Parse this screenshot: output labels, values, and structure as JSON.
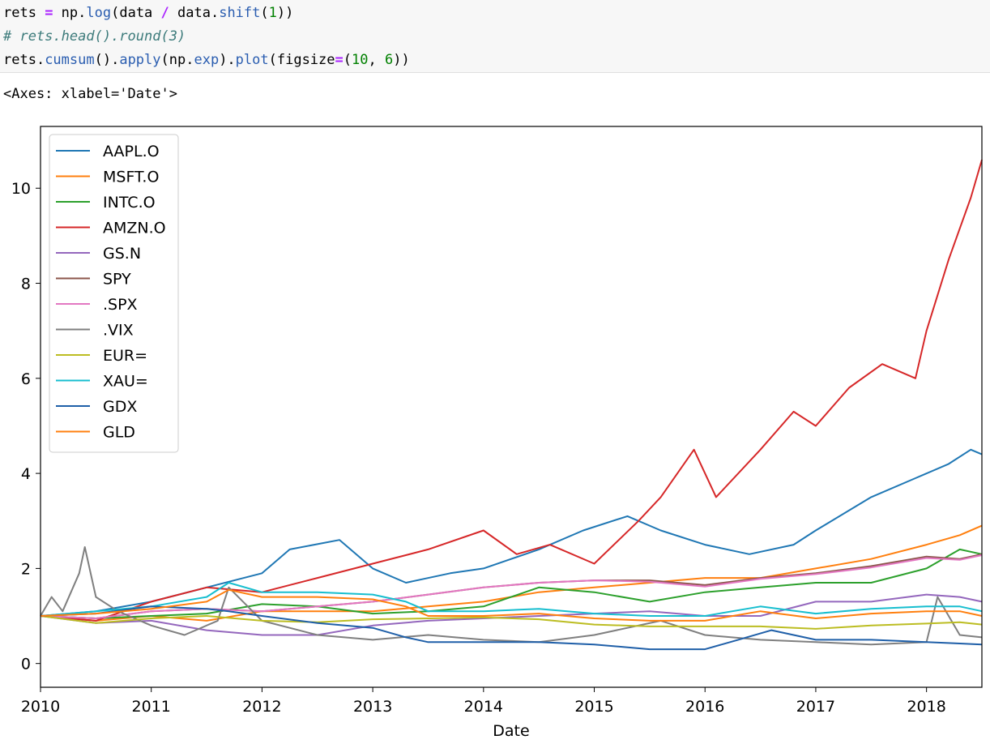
{
  "code": {
    "line1": {
      "a": "rets ",
      "op1": "=",
      "b": " np.",
      "fn1": "log",
      "c": "(data ",
      "op2": "/",
      "d": " data.",
      "fn2": "shift",
      "e": "(",
      "n1": "1",
      "f": "))"
    },
    "line2": {
      "comment": "# rets.head().round(3)"
    },
    "line3": {
      "a": "rets.",
      "fn1": "cumsum",
      "b": "().",
      "fn2": "apply",
      "c": "(np.",
      "fn3": "exp",
      "d": ").",
      "fn4": "plot",
      "e": "(figsize",
      "op1": "=",
      "f": "(",
      "n1": "10",
      "g": ", ",
      "n2": "6",
      "h": "))"
    }
  },
  "output": {
    "repr": "<Axes: xlabel='Date'>"
  },
  "chart_data": {
    "type": "line",
    "xlabel": "Date",
    "ylabel": "",
    "xlim": [
      2010.0,
      2018.5
    ],
    "ylim": [
      -0.5,
      11.3
    ],
    "xticks": [
      2010,
      2011,
      2012,
      2013,
      2014,
      2015,
      2016,
      2017,
      2018
    ],
    "yticks": [
      0,
      2,
      4,
      6,
      8,
      10
    ],
    "grid": false,
    "legend_position": "top-left",
    "series": [
      {
        "name": "AAPL.O",
        "color": "#1f77b4",
        "x": [
          2010.0,
          2010.5,
          2011.0,
          2011.5,
          2012.0,
          2012.25,
          2012.7,
          2013.0,
          2013.3,
          2013.7,
          2014.0,
          2014.5,
          2014.9,
          2015.3,
          2015.6,
          2016.0,
          2016.4,
          2016.8,
          2017.0,
          2017.5,
          2017.9,
          2018.2,
          2018.4,
          2018.5
        ],
        "values": [
          1.0,
          1.1,
          1.3,
          1.6,
          1.9,
          2.4,
          2.6,
          2.0,
          1.7,
          1.9,
          2.0,
          2.4,
          2.8,
          3.1,
          2.8,
          2.5,
          2.3,
          2.5,
          2.8,
          3.5,
          3.9,
          4.2,
          4.5,
          4.4
        ]
      },
      {
        "name": "MSFT.O",
        "color": "#ff7f0e",
        "x": [
          2010.0,
          2010.5,
          2011.0,
          2011.5,
          2012.0,
          2012.5,
          2013.0,
          2013.5,
          2014.0,
          2014.5,
          2015.0,
          2015.5,
          2016.0,
          2016.5,
          2017.0,
          2017.5,
          2018.0,
          2018.3,
          2018.5
        ],
        "values": [
          1.0,
          0.9,
          1.0,
          0.9,
          1.1,
          1.1,
          1.1,
          1.2,
          1.3,
          1.5,
          1.6,
          1.7,
          1.8,
          1.8,
          2.0,
          2.2,
          2.5,
          2.7,
          2.9
        ]
      },
      {
        "name": "INTC.O",
        "color": "#2ca02c",
        "x": [
          2010.0,
          2010.5,
          2011.0,
          2011.5,
          2012.0,
          2012.5,
          2013.0,
          2013.5,
          2014.0,
          2014.5,
          2015.0,
          2015.5,
          2016.0,
          2016.5,
          2017.0,
          2017.5,
          2018.0,
          2018.3,
          2018.5
        ],
        "values": [
          1.0,
          0.95,
          1.0,
          1.05,
          1.25,
          1.2,
          1.05,
          1.1,
          1.2,
          1.6,
          1.5,
          1.3,
          1.5,
          1.6,
          1.7,
          1.7,
          2.0,
          2.4,
          2.3
        ]
      },
      {
        "name": "AMZN.O",
        "color": "#d62728",
        "x": [
          2010.0,
          2010.5,
          2011.0,
          2011.5,
          2012.0,
          2012.5,
          2013.0,
          2013.5,
          2014.0,
          2014.3,
          2014.6,
          2015.0,
          2015.4,
          2015.6,
          2015.9,
          2016.1,
          2016.5,
          2016.8,
          2017.0,
          2017.3,
          2017.6,
          2017.9,
          2018.0,
          2018.2,
          2018.4,
          2018.5
        ],
        "values": [
          1.0,
          0.9,
          1.3,
          1.6,
          1.5,
          1.8,
          2.1,
          2.4,
          2.8,
          2.3,
          2.5,
          2.1,
          3.0,
          3.5,
          4.5,
          3.5,
          4.5,
          5.3,
          5.0,
          5.8,
          6.3,
          6.0,
          7.0,
          8.5,
          9.8,
          10.6
        ]
      },
      {
        "name": "GS.N",
        "color": "#9467bd",
        "x": [
          2010.0,
          2010.5,
          2011.0,
          2011.5,
          2012.0,
          2012.5,
          2013.0,
          2013.5,
          2014.0,
          2014.5,
          2015.0,
          2015.5,
          2016.0,
          2016.5,
          2017.0,
          2017.5,
          2018.0,
          2018.3,
          2018.5
        ],
        "values": [
          1.0,
          0.85,
          0.9,
          0.7,
          0.6,
          0.6,
          0.8,
          0.9,
          0.95,
          1.0,
          1.05,
          1.1,
          1.0,
          1.0,
          1.3,
          1.3,
          1.45,
          1.4,
          1.3
        ]
      },
      {
        "name": "SPY",
        "color": "#8c564b",
        "x": [
          2010.0,
          2010.5,
          2011.0,
          2011.5,
          2012.0,
          2012.5,
          2013.0,
          2013.5,
          2014.0,
          2014.5,
          2015.0,
          2015.5,
          2016.0,
          2016.5,
          2017.0,
          2017.5,
          2018.0,
          2018.3,
          2018.5
        ],
        "values": [
          1.0,
          0.95,
          1.1,
          1.15,
          1.1,
          1.2,
          1.3,
          1.45,
          1.6,
          1.7,
          1.75,
          1.75,
          1.65,
          1.8,
          1.9,
          2.05,
          2.25,
          2.2,
          2.3
        ]
      },
      {
        "name": ".SPX",
        "color": "#e377c2",
        "x": [
          2010.0,
          2010.5,
          2011.0,
          2011.5,
          2012.0,
          2012.5,
          2013.0,
          2013.5,
          2014.0,
          2014.5,
          2015.0,
          2015.5,
          2016.0,
          2016.5,
          2017.0,
          2017.5,
          2018.0,
          2018.3,
          2018.5
        ],
        "values": [
          1.0,
          0.95,
          1.1,
          1.15,
          1.1,
          1.2,
          1.3,
          1.45,
          1.6,
          1.7,
          1.75,
          1.72,
          1.62,
          1.78,
          1.88,
          2.02,
          2.22,
          2.18,
          2.28
        ]
      },
      {
        "name": ".VIX",
        "color": "#7f7f7f",
        "x": [
          2010.0,
          2010.1,
          2010.2,
          2010.35,
          2010.4,
          2010.5,
          2010.7,
          2011.0,
          2011.3,
          2011.6,
          2011.7,
          2012.0,
          2012.5,
          2013.0,
          2013.5,
          2014.0,
          2014.5,
          2015.0,
          2015.6,
          2016.0,
          2016.5,
          2017.0,
          2017.5,
          2018.0,
          2018.1,
          2018.3,
          2018.5
        ],
        "values": [
          1.0,
          1.4,
          1.1,
          1.9,
          2.45,
          1.4,
          1.1,
          0.8,
          0.6,
          0.9,
          1.6,
          0.9,
          0.6,
          0.5,
          0.6,
          0.5,
          0.45,
          0.6,
          0.9,
          0.6,
          0.5,
          0.45,
          0.4,
          0.45,
          1.4,
          0.6,
          0.55
        ]
      },
      {
        "name": "EUR=",
        "color": "#bcbd22",
        "x": [
          2010.0,
          2010.5,
          2011.0,
          2011.5,
          2012.0,
          2012.5,
          2013.0,
          2013.5,
          2014.0,
          2014.5,
          2015.0,
          2015.5,
          2016.0,
          2016.5,
          2017.0,
          2017.5,
          2018.0,
          2018.3,
          2018.5
        ],
        "values": [
          1.0,
          0.85,
          0.95,
          1.0,
          0.9,
          0.87,
          0.93,
          0.95,
          0.97,
          0.93,
          0.82,
          0.78,
          0.78,
          0.78,
          0.73,
          0.8,
          0.84,
          0.87,
          0.82
        ]
      },
      {
        "name": "XAU=",
        "color": "#17becf",
        "x": [
          2010.0,
          2010.5,
          2011.0,
          2011.5,
          2011.7,
          2012.0,
          2012.5,
          2013.0,
          2013.3,
          2013.5,
          2014.0,
          2014.5,
          2015.0,
          2015.5,
          2016.0,
          2016.5,
          2017.0,
          2017.5,
          2018.0,
          2018.3,
          2018.5
        ],
        "values": [
          1.0,
          1.1,
          1.2,
          1.4,
          1.7,
          1.5,
          1.5,
          1.45,
          1.3,
          1.1,
          1.1,
          1.15,
          1.05,
          1.0,
          1.0,
          1.2,
          1.05,
          1.15,
          1.2,
          1.2,
          1.1
        ]
      },
      {
        "name": "GDX",
        "color": "#1f5fa8",
        "x": [
          2010.0,
          2010.5,
          2011.0,
          2011.5,
          2011.7,
          2012.0,
          2012.5,
          2013.0,
          2013.3,
          2013.5,
          2014.0,
          2014.5,
          2015.0,
          2015.5,
          2016.0,
          2016.3,
          2016.6,
          2017.0,
          2017.5,
          2018.0,
          2018.3,
          2018.5
        ],
        "values": [
          1.0,
          1.05,
          1.2,
          1.15,
          1.1,
          1.0,
          0.85,
          0.75,
          0.55,
          0.45,
          0.45,
          0.45,
          0.4,
          0.3,
          0.3,
          0.5,
          0.7,
          0.5,
          0.5,
          0.45,
          0.42,
          0.4
        ]
      },
      {
        "name": "GLD",
        "color": "#ff7f0e",
        "x": [
          2010.0,
          2010.5,
          2011.0,
          2011.5,
          2011.7,
          2012.0,
          2012.5,
          2013.0,
          2013.3,
          2013.5,
          2014.0,
          2014.5,
          2015.0,
          2015.5,
          2016.0,
          2016.5,
          2017.0,
          2017.5,
          2018.0,
          2018.3,
          2018.5
        ],
        "values": [
          1.0,
          1.05,
          1.15,
          1.3,
          1.55,
          1.4,
          1.4,
          1.35,
          1.2,
          1.0,
          1.0,
          1.05,
          0.95,
          0.9,
          0.9,
          1.1,
          0.95,
          1.05,
          1.1,
          1.1,
          1.0
        ]
      }
    ]
  }
}
